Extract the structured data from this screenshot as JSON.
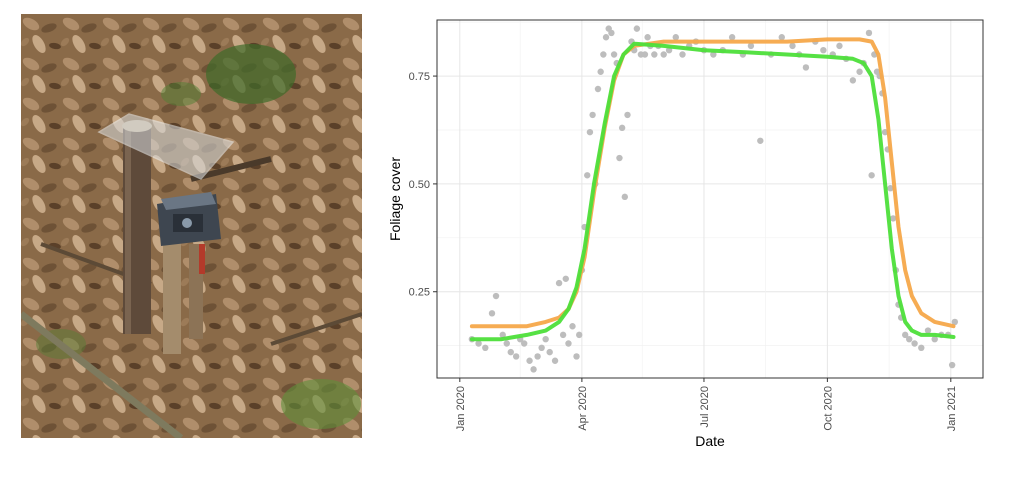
{
  "photo": {
    "description_icon": "field-camera-photo"
  },
  "chart_data": {
    "type": "scatter",
    "title": "",
    "xlabel": "Date",
    "ylabel": "Foliage cover",
    "x_ticks": [
      "Jan 2020",
      "Apr 2020",
      "Jul 2020",
      "Oct 2020",
      "Jan 2021"
    ],
    "x_tick_dates": [
      "2020-01-01",
      "2020-04-01",
      "2020-07-01",
      "2020-10-01",
      "2021-01-01"
    ],
    "y_ticks": [
      "0.25",
      "0.50",
      "0.75"
    ],
    "y_tick_values": [
      0.25,
      0.5,
      0.75
    ],
    "xlim": [
      "2019-12-15",
      "2021-01-25"
    ],
    "ylim": [
      0.05,
      0.88
    ],
    "grid": true,
    "colors": {
      "points": "#bdbdbd",
      "orange_curve": "#f5a84a",
      "green_curve": "#4ddf3a"
    },
    "series": [
      {
        "kind": "scatter",
        "x": [
          "2020-01-10",
          "2020-01-15",
          "2020-01-20",
          "2020-01-25",
          "2020-01-28",
          "2020-02-02",
          "2020-02-05",
          "2020-02-08",
          "2020-02-12",
          "2020-02-15",
          "2020-02-18",
          "2020-02-22",
          "2020-02-25",
          "2020-02-28",
          "2020-03-02",
          "2020-03-05",
          "2020-03-08",
          "2020-03-12",
          "2020-03-15",
          "2020-03-18",
          "2020-03-20",
          "2020-03-22",
          "2020-03-25",
          "2020-03-28",
          "2020-03-30",
          "2020-04-01",
          "2020-04-03",
          "2020-04-05",
          "2020-04-07",
          "2020-04-09",
          "2020-04-11",
          "2020-04-13",
          "2020-04-15",
          "2020-04-17",
          "2020-04-19",
          "2020-04-21",
          "2020-04-23",
          "2020-04-25",
          "2020-04-27",
          "2020-04-29",
          "2020-05-01",
          "2020-05-03",
          "2020-05-05",
          "2020-05-08",
          "2020-05-10",
          "2020-05-12",
          "2020-05-15",
          "2020-05-18",
          "2020-05-20",
          "2020-05-22",
          "2020-05-25",
          "2020-05-28",
          "2020-06-01",
          "2020-06-05",
          "2020-06-10",
          "2020-06-15",
          "2020-06-20",
          "2020-06-25",
          "2020-07-01",
          "2020-07-08",
          "2020-07-15",
          "2020-07-22",
          "2020-07-30",
          "2020-08-05",
          "2020-08-12",
          "2020-08-20",
          "2020-08-28",
          "2020-09-05",
          "2020-09-10",
          "2020-09-15",
          "2020-09-22",
          "2020-09-28",
          "2020-10-05",
          "2020-10-10",
          "2020-10-15",
          "2020-10-20",
          "2020-10-25",
          "2020-10-28",
          "2020-11-01",
          "2020-11-03",
          "2020-11-05",
          "2020-11-07",
          "2020-11-09",
          "2020-11-11",
          "2020-11-13",
          "2020-11-15",
          "2020-11-17",
          "2020-11-19",
          "2020-11-21",
          "2020-11-23",
          "2020-11-25",
          "2020-11-28",
          "2020-12-01",
          "2020-12-05",
          "2020-12-10",
          "2020-12-15",
          "2020-12-20",
          "2020-12-25",
          "2020-12-30",
          "2021-01-02",
          "2021-01-04"
        ],
        "y": [
          0.14,
          0.13,
          0.12,
          0.2,
          0.24,
          0.15,
          0.13,
          0.11,
          0.1,
          0.14,
          0.13,
          0.09,
          0.07,
          0.1,
          0.12,
          0.14,
          0.11,
          0.09,
          0.27,
          0.15,
          0.28,
          0.13,
          0.17,
          0.1,
          0.15,
          0.3,
          0.4,
          0.52,
          0.62,
          0.66,
          0.5,
          0.72,
          0.76,
          0.8,
          0.84,
          0.86,
          0.85,
          0.8,
          0.78,
          0.56,
          0.63,
          0.47,
          0.66,
          0.83,
          0.81,
          0.86,
          0.8,
          0.8,
          0.84,
          0.82,
          0.8,
          0.82,
          0.8,
          0.81,
          0.84,
          0.8,
          0.82,
          0.83,
          0.81,
          0.8,
          0.81,
          0.84,
          0.8,
          0.82,
          0.6,
          0.8,
          0.84,
          0.82,
          0.8,
          0.77,
          0.83,
          0.81,
          0.8,
          0.82,
          0.79,
          0.74,
          0.76,
          0.78,
          0.85,
          0.52,
          0.8,
          0.76,
          0.75,
          0.71,
          0.62,
          0.58,
          0.49,
          0.42,
          0.3,
          0.22,
          0.19,
          0.15,
          0.14,
          0.13,
          0.12,
          0.16,
          0.14,
          0.15,
          0.15,
          0.08,
          0.18
        ]
      },
      {
        "kind": "line",
        "color_key": "orange_curve",
        "x": [
          "2020-01-10",
          "2020-02-01",
          "2020-02-20",
          "2020-03-05",
          "2020-03-15",
          "2020-03-22",
          "2020-03-28",
          "2020-04-03",
          "2020-04-10",
          "2020-04-18",
          "2020-04-25",
          "2020-05-02",
          "2020-05-10",
          "2020-06-01",
          "2020-07-01",
          "2020-08-01",
          "2020-09-01",
          "2020-10-01",
          "2020-10-25",
          "2020-11-03",
          "2020-11-08",
          "2020-11-13",
          "2020-11-18",
          "2020-11-23",
          "2020-11-28",
          "2020-12-03",
          "2020-12-10",
          "2020-12-20",
          "2021-01-03"
        ],
        "y": [
          0.17,
          0.17,
          0.17,
          0.18,
          0.19,
          0.21,
          0.25,
          0.33,
          0.48,
          0.63,
          0.74,
          0.8,
          0.82,
          0.83,
          0.83,
          0.83,
          0.83,
          0.835,
          0.835,
          0.83,
          0.8,
          0.7,
          0.55,
          0.4,
          0.3,
          0.24,
          0.2,
          0.18,
          0.17
        ]
      },
      {
        "kind": "line",
        "color_key": "green_curve",
        "x": [
          "2020-01-10",
          "2020-02-01",
          "2020-02-20",
          "2020-03-05",
          "2020-03-15",
          "2020-03-22",
          "2020-03-28",
          "2020-04-03",
          "2020-04-10",
          "2020-04-18",
          "2020-04-25",
          "2020-05-02",
          "2020-05-10",
          "2020-06-01",
          "2020-07-01",
          "2020-08-01",
          "2020-09-01",
          "2020-10-01",
          "2020-10-20",
          "2020-10-28",
          "2020-11-03",
          "2020-11-08",
          "2020-11-13",
          "2020-11-18",
          "2020-11-23",
          "2020-11-28",
          "2020-12-03",
          "2020-12-10",
          "2020-12-20",
          "2021-01-03"
        ],
        "y": [
          0.14,
          0.14,
          0.15,
          0.16,
          0.18,
          0.21,
          0.26,
          0.35,
          0.5,
          0.64,
          0.75,
          0.8,
          0.825,
          0.82,
          0.81,
          0.805,
          0.8,
          0.795,
          0.79,
          0.78,
          0.75,
          0.65,
          0.5,
          0.35,
          0.24,
          0.18,
          0.16,
          0.15,
          0.15,
          0.145
        ]
      }
    ]
  }
}
